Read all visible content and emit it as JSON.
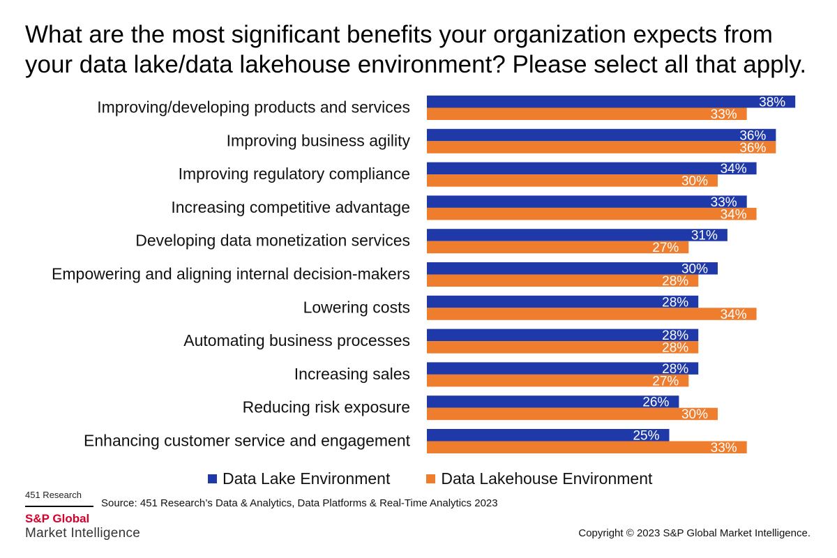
{
  "chart_data": {
    "type": "bar",
    "orientation": "horizontal",
    "title": "What are the most significant benefits your organization expects from your data lake/data lakehouse environment? Please select all that apply.",
    "categories": [
      "Improving/developing products and services",
      "Improving business agility",
      "Improving regulatory compliance",
      "Increasing competitive advantage",
      "Developing data monetization services",
      "Empowering and aligning internal decision-makers",
      "Lowering costs",
      "Automating business processes",
      "Increasing sales",
      "Reducing risk exposure",
      "Enhancing customer service and engagement"
    ],
    "series": [
      {
        "name": "Data Lake Environment",
        "color": "#1f3aa8",
        "values": [
          38,
          36,
          34,
          33,
          31,
          30,
          28,
          28,
          28,
          26,
          25
        ]
      },
      {
        "name": "Data Lakehouse Environment",
        "color": "#ef7d2e",
        "values": [
          33,
          36,
          30,
          34,
          27,
          28,
          34,
          28,
          27,
          30,
          33
        ]
      }
    ],
    "value_suffix": "%",
    "legend_position": "bottom",
    "grid": false
  },
  "branding": {
    "research": "451 Research",
    "company": "S&P Global",
    "division": "Market Intelligence"
  },
  "source": "Source: 451 Research’s Data & Analytics, Data Platforms & Real-Time Analytics 2023",
  "copyright": "Copyright © 2023 S&P Global Market Intelligence."
}
